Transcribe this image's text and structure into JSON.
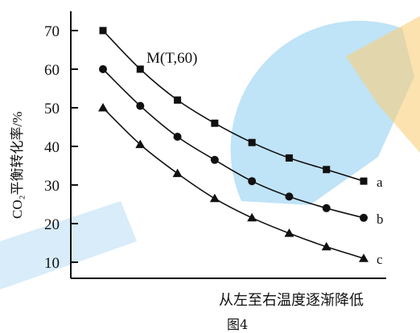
{
  "chart_data": {
    "type": "line",
    "ylabel": "CO₂平衡转化率/%",
    "xlabel": "从左至右温度逐渐降低",
    "caption": "图4",
    "annotation": "M(T,60)",
    "y_ticks": [
      10,
      20,
      30,
      40,
      50,
      60,
      70
    ],
    "ylim": [
      8,
      78
    ],
    "x": [
      1,
      2,
      3,
      4,
      5,
      6,
      7,
      8
    ],
    "xlim": [
      0.55,
      8.5
    ],
    "grid": false,
    "series": [
      {
        "name": "a",
        "marker": "square",
        "x": [
          1,
          2,
          3,
          4,
          5,
          6,
          7,
          8
        ],
        "values": [
          70,
          60,
          52,
          46,
          41,
          37,
          34,
          31
        ]
      },
      {
        "name": "b",
        "marker": "circle",
        "x": [
          1,
          2,
          3,
          4,
          5,
          6,
          7,
          8
        ],
        "values": [
          60,
          50.5,
          42.5,
          36.5,
          31,
          27,
          24,
          21.5
        ]
      },
      {
        "name": "c",
        "marker": "triangle",
        "x": [
          1,
          2,
          3,
          4,
          5,
          6,
          7,
          8
        ],
        "values": [
          50,
          40.5,
          33,
          26.5,
          21.5,
          17.5,
          14,
          11
        ]
      }
    ]
  }
}
